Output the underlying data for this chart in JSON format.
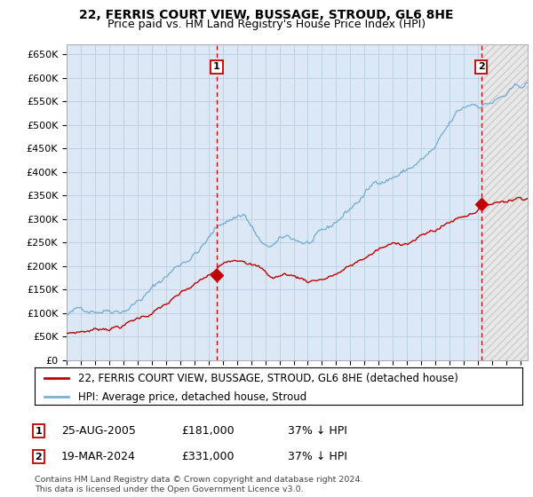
{
  "title": "22, FERRIS COURT VIEW, BUSSAGE, STROUD, GL6 8HE",
  "subtitle": "Price paid vs. HM Land Registry's House Price Index (HPI)",
  "ylim": [
    0,
    670000
  ],
  "yticks": [
    0,
    50000,
    100000,
    150000,
    200000,
    250000,
    300000,
    350000,
    400000,
    450000,
    500000,
    550000,
    600000,
    650000
  ],
  "xlim_start": 1995.0,
  "xlim_end": 2027.5,
  "sale1_date": 2005.58,
  "sale1_price": 181000,
  "sale2_date": 2024.22,
  "sale2_price": 331000,
  "sale1_label": "1",
  "sale2_label": "2",
  "legend_property": "22, FERRIS COURT VIEW, BUSSAGE, STROUD, GL6 8HE (detached house)",
  "legend_hpi": "HPI: Average price, detached house, Stroud",
  "footer": "Contains HM Land Registry data © Crown copyright and database right 2024.\nThis data is licensed under the Open Government Licence v3.0.",
  "hpi_color": "#7bafd4",
  "property_color": "#c00000",
  "background_color": "#ffffff",
  "chart_bg": "#dce8f5",
  "grid_color": "#b8cfe0",
  "hatch_start": 2024.3,
  "hpi_breakpoints": [
    [
      1995.0,
      95000
    ],
    [
      1997.0,
      112000
    ],
    [
      1999.0,
      130000
    ],
    [
      2001.0,
      175000
    ],
    [
      2003.0,
      230000
    ],
    [
      2004.5,
      270000
    ],
    [
      2006.0,
      320000
    ],
    [
      2007.5,
      345000
    ],
    [
      2009.0,
      265000
    ],
    [
      2010.5,
      280000
    ],
    [
      2012.0,
      270000
    ],
    [
      2013.5,
      285000
    ],
    [
      2015.0,
      330000
    ],
    [
      2017.0,
      390000
    ],
    [
      2019.0,
      420000
    ],
    [
      2021.0,
      460000
    ],
    [
      2022.5,
      520000
    ],
    [
      2023.5,
      540000
    ],
    [
      2024.3,
      545000
    ],
    [
      2027.5,
      580000
    ]
  ],
  "prop_breakpoints": [
    [
      1995.0,
      55000
    ],
    [
      1997.0,
      65000
    ],
    [
      1999.0,
      78000
    ],
    [
      2001.0,
      105000
    ],
    [
      2003.0,
      138000
    ],
    [
      2004.5,
      162000
    ],
    [
      2005.58,
      181000
    ],
    [
      2006.5,
      205000
    ],
    [
      2007.5,
      215000
    ],
    [
      2008.5,
      200000
    ],
    [
      2009.5,
      175000
    ],
    [
      2010.5,
      183000
    ],
    [
      2011.5,
      175000
    ],
    [
      2012.0,
      170000
    ],
    [
      2013.5,
      180000
    ],
    [
      2015.0,
      200000
    ],
    [
      2017.0,
      235000
    ],
    [
      2019.0,
      250000
    ],
    [
      2021.0,
      275000
    ],
    [
      2022.5,
      300000
    ],
    [
      2023.5,
      315000
    ],
    [
      2024.22,
      331000
    ],
    [
      2027.5,
      360000
    ]
  ],
  "title_fontsize": 10,
  "subtitle_fontsize": 9,
  "tick_fontsize": 8,
  "legend_fontsize": 8.5,
  "table_fontsize": 9
}
